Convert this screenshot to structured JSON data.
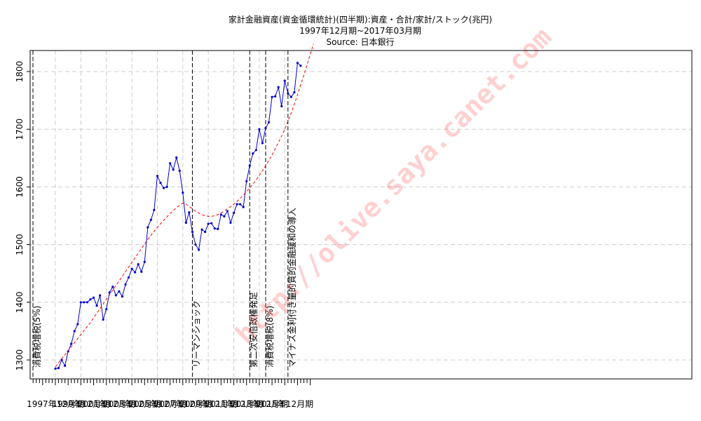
{
  "chart_data": {
    "type": "line",
    "title": "家計金融資産(資金循環統計)(四半期):資産・合計/家計/ストック(兆円)",
    "subtitle": "1997年12月期~2017年03月期",
    "source": "Source: 日本銀行",
    "watermark": "http://olive.saya.canet.com",
    "xlabel": "",
    "ylabel": "",
    "grid": true,
    "legend": "none",
    "x_start": "1997年12月期",
    "x_end": "2017年03月期",
    "x_tick_labels": [
      "1997年12月期",
      "1999年12月期",
      "2001年12月期",
      "2003年12月期",
      "2005年12月期",
      "2007年12月期",
      "2009年12月期",
      "2011年12月期",
      "2013年12月期",
      "2015年12月期"
    ],
    "y_ticks": [
      1300,
      1400,
      1500,
      1600,
      1700,
      1800
    ],
    "ylim": [
      1268,
      1842
    ],
    "series": [
      {
        "color": "#0000cc",
        "values": [
          1285,
          1286,
          1300,
          1290,
          1315,
          1328,
          1350,
          1362,
          1400,
          1400,
          1400,
          1405,
          1408,
          1394,
          1412,
          1370,
          1388,
          1417,
          1427,
          1412,
          1419,
          1410,
          1431,
          1443,
          1458,
          1452,
          1466,
          1453,
          1470,
          1530,
          1543,
          1560,
          1619,
          1607,
          1598,
          1600,
          1641,
          1630,
          1651,
          1628,
          1590,
          1538,
          1556,
          1522,
          1500,
          1491,
          1526,
          1522,
          1536,
          1537,
          1528,
          1527,
          1552,
          1549,
          1558,
          1538,
          1555,
          1570,
          1570,
          1565,
          1610,
          1637,
          1658,
          1664,
          1700,
          1676,
          1702,
          1712,
          1756,
          1757,
          1773,
          1740,
          1784,
          1762,
          1756,
          1764,
          1815,
          1810
        ]
      },
      {
        "color": "#ff0000",
        "style": "dashed",
        "values": [
          1288,
          1295,
          1302,
          1309,
          1316,
          1323,
          1330,
          1337,
          1344,
          1351,
          1358,
          1365,
          1373,
          1381,
          1389,
          1397,
          1405,
          1413,
          1421,
          1429,
          1437,
          1445,
          1453,
          1461,
          1469,
          1477,
          1485,
          1493,
          1501,
          1509,
          1516,
          1523,
          1530,
          1536,
          1542,
          1548,
          1554,
          1559,
          1564,
          1568,
          1572,
          1570,
          1566,
          1562,
          1558,
          1555,
          1552,
          1550,
          1549,
          1549,
          1550,
          1552,
          1555,
          1558,
          1562,
          1566,
          1570,
          1575,
          1580,
          1586,
          1592,
          1598,
          1605,
          1612,
          1620,
          1628,
          1637,
          1646,
          1655,
          1666,
          1677,
          1688,
          1700,
          1714,
          1728,
          1743,
          1760,
          1777,
          1794,
          1812,
          1830,
          1848
        ]
      }
    ],
    "events": [
      {
        "label": "消費税増税(5%)",
        "index": -1
      },
      {
        "label": "リーマンショック",
        "index": 43
      },
      {
        "label": "第二次安倍政権発足",
        "index": 61
      },
      {
        "label": "消費税増税(8%)",
        "index": 66
      },
      {
        "label": "マイナス金利付き量的質的金融緩和の導入",
        "index": 73
      }
    ]
  }
}
